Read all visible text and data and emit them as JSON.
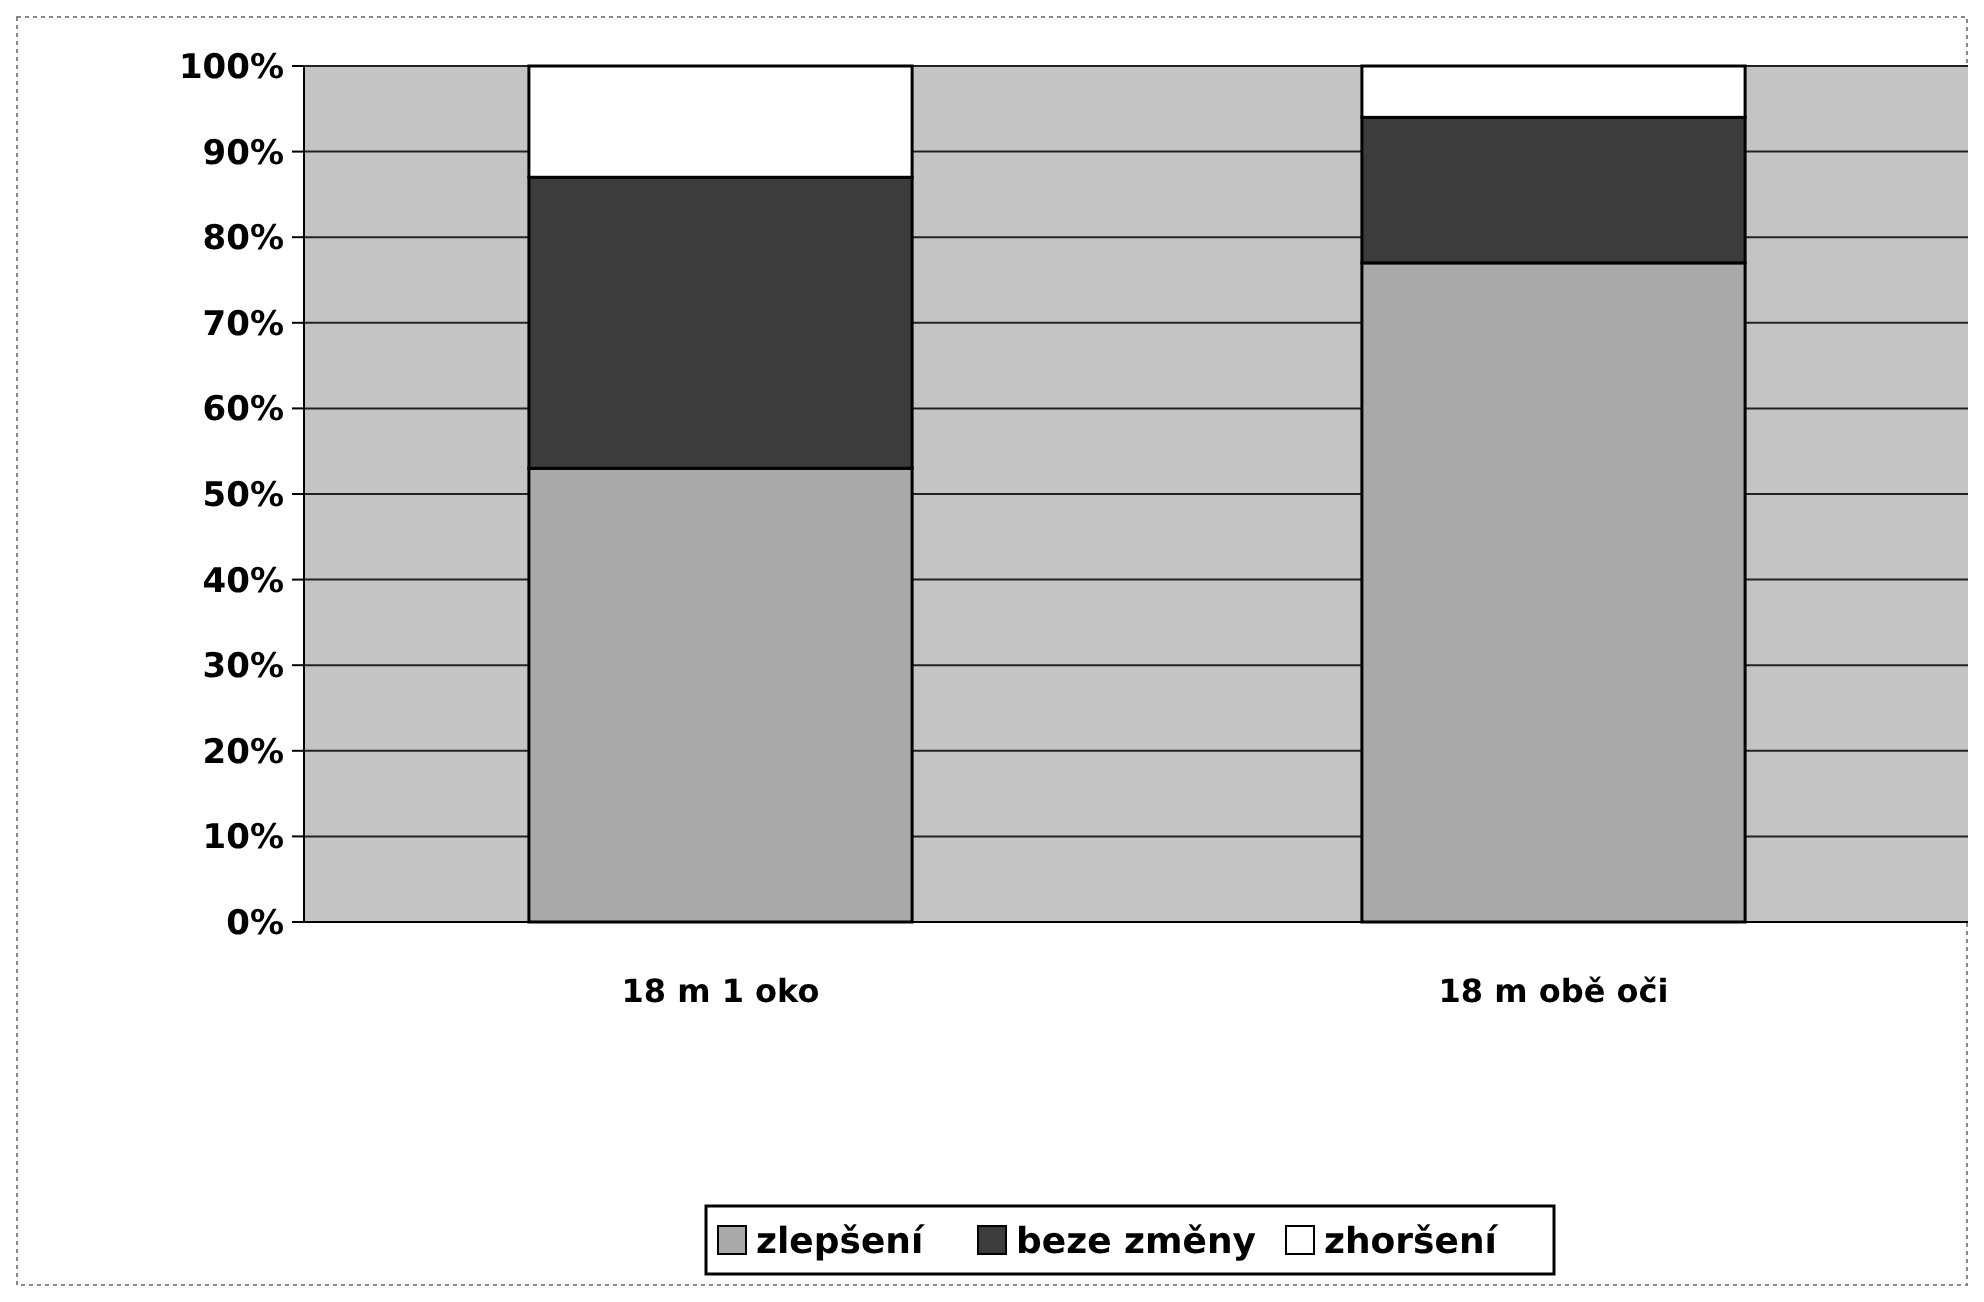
{
  "chart_data": {
    "type": "bar",
    "stacked": true,
    "categories": [
      "18 m 1 oko",
      "18 m obě oči"
    ],
    "series": [
      {
        "name": "zlepšení",
        "color": "#a9a9a9",
        "values": [
          53,
          77
        ]
      },
      {
        "name": "beze změny",
        "color": "#3c3c3c",
        "values": [
          34,
          17
        ]
      },
      {
        "name": "zhoršení",
        "color": "#ffffff",
        "values": [
          13,
          6
        ]
      }
    ],
    "ylim": [
      0,
      100
    ],
    "yticks": [
      {
        "value": 0,
        "label": "0%"
      },
      {
        "value": 10,
        "label": "10%"
      },
      {
        "value": 20,
        "label": "20%"
      },
      {
        "value": 30,
        "label": "30%"
      },
      {
        "value": 40,
        "label": "40%"
      },
      {
        "value": 50,
        "label": "50%"
      },
      {
        "value": 60,
        "label": "60%"
      },
      {
        "value": 70,
        "label": "70%"
      },
      {
        "value": 80,
        "label": "80%"
      },
      {
        "value": 90,
        "label": "90%"
      },
      {
        "value": 100,
        "label": "100%"
      }
    ],
    "grid": "y",
    "legend": "bottom"
  }
}
